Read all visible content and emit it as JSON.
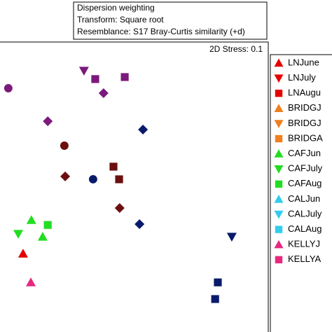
{
  "chart_data": {
    "type": "scatter",
    "annotations": [
      "Dispersion weighting",
      "Transform: Square root",
      "Resemblance: S17 Bray-Curtis similarity (+d)"
    ],
    "stress": "2D Stress: 0.1",
    "xlim": [
      0,
      100
    ],
    "ylim": [
      0,
      100
    ],
    "series": [
      {
        "name": "LNJune",
        "color": "#e60000",
        "marker": "triangle-up",
        "x": [
          8.6
        ],
        "y": [
          26.3
        ]
      },
      {
        "name": "LNJuly",
        "color": "#e60000",
        "marker": "triangle-down",
        "x": [],
        "y": []
      },
      {
        "name": "LNAugu",
        "color": "#e60000",
        "marker": "square",
        "x": [],
        "y": []
      },
      {
        "name": "BRIDGJ",
        "color": "#f07f1e",
        "marker": "triangle-up",
        "x": [],
        "y": []
      },
      {
        "name": "BRIDGJ",
        "color": "#f07f1e",
        "marker": "triangle-down",
        "x": [],
        "y": []
      },
      {
        "name": "BRIDGA",
        "color": "#f07f1e",
        "marker": "square",
        "x": [],
        "y": []
      },
      {
        "name": "CAFJun",
        "color": "#22dd22",
        "marker": "triangle-up",
        "x": [
          11.7,
          15.9
        ],
        "y": [
          38.0,
          32.2
        ]
      },
      {
        "name": "CAFJuly",
        "color": "#22dd22",
        "marker": "triangle-down",
        "x": [
          6.8
        ],
        "y": [
          33.2
        ]
      },
      {
        "name": "CAFAug",
        "color": "#22dd22",
        "marker": "square",
        "x": [
          17.8
        ],
        "y": [
          36.3
        ]
      },
      {
        "name": "CALJun",
        "color": "#33ccee",
        "marker": "triangle-up",
        "x": [],
        "y": []
      },
      {
        "name": "CALJuly",
        "color": "#33ccee",
        "marker": "triangle-down",
        "x": [],
        "y": []
      },
      {
        "name": "CALAug",
        "color": "#33ccee",
        "marker": "square",
        "x": [],
        "y": []
      },
      {
        "name": "KELLYJ",
        "color": "#e6287f",
        "marker": "triangle-up",
        "x": [
          11.5
        ],
        "y": [
          16.3
        ]
      },
      {
        "name": "KELLYA",
        "color": "#e6287f",
        "marker": "square",
        "x": [],
        "y": []
      },
      {
        "name": null,
        "color": "#7b1a7b",
        "marker": "circle",
        "x": [
          3.1
        ],
        "y": [
          83.9
        ]
      },
      {
        "name": null,
        "color": "#7b1a7b",
        "marker": "triangle-down",
        "x": [
          31.3
        ],
        "y": [
          90.0
        ]
      },
      {
        "name": null,
        "color": "#7b1a7b",
        "marker": "square",
        "x": [
          35.5,
          46.5
        ],
        "y": [
          87.1,
          87.8
        ]
      },
      {
        "name": null,
        "color": "#7b1a7b",
        "marker": "diamond",
        "x": [
          38.6,
          17.8
        ],
        "y": [
          82.2,
          72.4
        ]
      },
      {
        "name": null,
        "color": "#6b0f0f",
        "marker": "circle",
        "x": [
          24.0
        ],
        "y": [
          63.9
        ]
      },
      {
        "name": null,
        "color": "#6b0f0f",
        "marker": "diamond",
        "x": [
          24.3,
          44.6
        ],
        "y": [
          53.2,
          42.2
        ]
      },
      {
        "name": null,
        "color": "#6b0f0f",
        "marker": "square",
        "x": [
          42.3,
          44.4
        ],
        "y": [
          56.6,
          52.2
        ]
      },
      {
        "name": null,
        "color": "#0a1a6b",
        "marker": "circle",
        "x": [
          34.7
        ],
        "y": [
          52.2
        ]
      },
      {
        "name": null,
        "color": "#0a1a6b",
        "marker": "diamond",
        "x": [
          53.3,
          52.0
        ],
        "y": [
          69.5,
          36.6
        ]
      },
      {
        "name": null,
        "color": "#0a1a6b",
        "marker": "triangle-down",
        "x": [
          86.4
        ],
        "y": [
          32.2
        ]
      },
      {
        "name": null,
        "color": "#0a1a6b",
        "marker": "square",
        "x": [
          81.2,
          80.2
        ],
        "y": [
          16.3,
          10.5
        ]
      }
    ]
  }
}
